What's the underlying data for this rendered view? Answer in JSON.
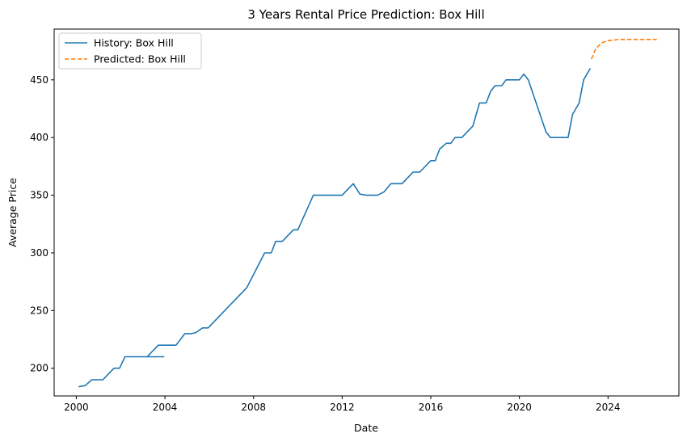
{
  "chart_data": {
    "type": "line",
    "title": "3 Years Rental Price Prediction: Box Hill",
    "xlabel": "Date",
    "ylabel": "Average Price",
    "xlim": [
      1999.0,
      2027.2
    ],
    "ylim": [
      176,
      494
    ],
    "x_ticks": [
      2000,
      2004,
      2008,
      2012,
      2016,
      2020,
      2024
    ],
    "y_ticks": [
      200,
      250,
      300,
      350,
      400,
      450
    ],
    "grid": false,
    "legend_position": "top-left",
    "series": [
      {
        "name": "History: Box Hill",
        "color": "#1f77b4",
        "style": "solid",
        "x": [
          2000.1,
          2000.4,
          2000.7,
          2001.2,
          2001.7,
          2001.95,
          2002.2,
          2003.2,
          2003.95,
          2003.2,
          2003.7,
          2004.5,
          2004.9,
          2005.2,
          2005.4,
          2005.7,
          2005.95,
          2007.7,
          2008.5,
          2008.8,
          2009.0,
          2009.3,
          2009.8,
          2010.0,
          2010.7,
          2012.0,
          2012.5,
          2012.8,
          2013.1,
          2013.6,
          2013.9,
          2014.2,
          2014.7,
          2015.2,
          2015.5,
          2016.0,
          2016.2,
          2016.4,
          2016.7,
          2016.9,
          2017.1,
          2017.4,
          2017.9,
          2018.2,
          2018.5,
          2018.7,
          2018.9,
          2019.2,
          2019.4,
          2019.7,
          2020.0,
          2020.2,
          2020.4,
          2021.2,
          2021.4,
          2021.7,
          2022.2,
          2022.4,
          2022.7,
          2022.9,
          2023.2
        ],
        "y": [
          184,
          185,
          190,
          190,
          200,
          200,
          210,
          210,
          210,
          210,
          220,
          220,
          230,
          230,
          231,
          235,
          235,
          270,
          300,
          300,
          310,
          310,
          320,
          320,
          350,
          350,
          360,
          351,
          350,
          350,
          353,
          360,
          360,
          370,
          370,
          380,
          380,
          390,
          395,
          395,
          400,
          400,
          410,
          430,
          430,
          440,
          445,
          445,
          450,
          450,
          450,
          455,
          450,
          405,
          400,
          400,
          400,
          420,
          430,
          450,
          460
        ]
      },
      {
        "name": "Predicted: Box Hill",
        "color": "#ff7f0e",
        "style": "dashed",
        "x": [
          2023.25,
          2023.4,
          2023.55,
          2023.7,
          2023.85,
          2024.0,
          2024.25,
          2024.5,
          2025.0,
          2025.5,
          2026.0,
          2026.2
        ],
        "y": [
          468,
          475,
          479,
          482,
          483,
          484,
          484.5,
          485,
          485,
          485,
          485,
          485
        ]
      }
    ]
  }
}
